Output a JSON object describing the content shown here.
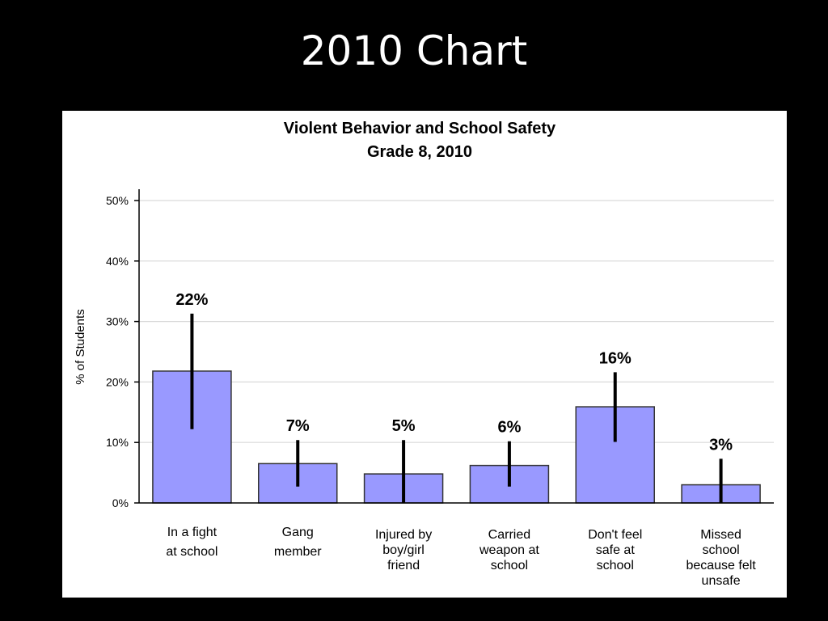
{
  "slide": {
    "title": "2010 Chart"
  },
  "colors": {
    "background": "#000000",
    "panel": "#ffffff",
    "bar_fill": "#9999ff",
    "bar_stroke": "#333333",
    "error_bar": "#000000",
    "grid": "#d9d9d9"
  },
  "chart_data": {
    "type": "bar",
    "title": [
      "Violent Behavior and School Safety",
      "Grade 8, 2010"
    ],
    "ylabel": "% of Students",
    "xlabel": "",
    "ylim": [
      0,
      50
    ],
    "yticks": [
      0,
      10,
      20,
      30,
      40,
      50
    ],
    "ytick_labels": [
      "0%",
      "10%",
      "20%",
      "30%",
      "40%",
      "50%"
    ],
    "grid": true,
    "categories": [
      [
        "In a fight",
        "at school"
      ],
      [
        "Gang",
        "member"
      ],
      [
        "Injured by",
        "boy/girl",
        "friend"
      ],
      [
        "Carried",
        "weapon at",
        "school"
      ],
      [
        "Don't feel",
        "safe at",
        "school"
      ],
      [
        "Missed",
        "school",
        "because felt",
        "unsafe"
      ]
    ],
    "values": [
      21.8,
      6.5,
      4.8,
      6.2,
      15.9,
      3.0
    ],
    "error_low": [
      12.2,
      2.7,
      0.0,
      2.7,
      10.1,
      0.0
    ],
    "error_high": [
      31.3,
      10.4,
      10.4,
      10.2,
      21.6,
      7.3
    ],
    "data_labels": [
      "22%",
      "7%",
      "5%",
      "6%",
      "16%",
      "3%"
    ]
  }
}
